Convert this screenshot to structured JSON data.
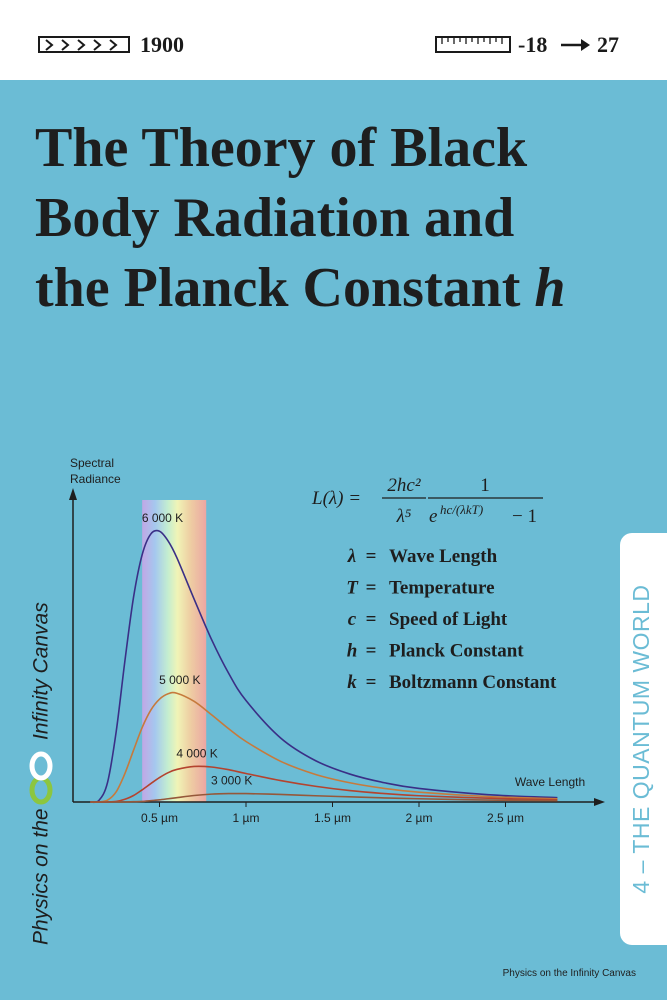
{
  "header": {
    "year": "1900",
    "range_from": "-18",
    "range_to": "27"
  },
  "title": {
    "lines": [
      "The Theory of Black",
      "Body Radiation and",
      "the Planck Constant"
    ],
    "symbol": "h"
  },
  "formula": {
    "lhs": "L(λ) =",
    "numerator_1": "2hc²",
    "denominator_1": "λ⁵",
    "numerator_2": "1",
    "exp_base": "e",
    "exponent": "hc/(λkT)",
    "minus_one": "− 1"
  },
  "equals_sign": "=",
  "definitions": [
    {
      "symbol": "λ",
      "label": "Wave Length"
    },
    {
      "symbol": "T",
      "label": "Temperature"
    },
    {
      "symbol": "c",
      "label": "Speed of Light"
    },
    {
      "symbol": "h",
      "label": "Planck Constant"
    },
    {
      "symbol": "k",
      "label": "Boltzmann Constant"
    }
  ],
  "side_tab": "4 – THE QUANTUM WORLD",
  "brand": {
    "prefix": "Physics on the",
    "name": "Infinity Canvas"
  },
  "footer": "Physics on the Infinity Canvas",
  "chart_data": {
    "type": "line",
    "y_label": [
      "Spectral",
      "Radiance"
    ],
    "x_label": "Wave Length",
    "xlim": [
      0,
      3
    ],
    "ylim": [
      0,
      115
    ],
    "xticks": [
      {
        "value": 0.5,
        "label": "0.5 µm"
      },
      {
        "value": 1,
        "label": "1 µm"
      },
      {
        "value": 1.5,
        "label": "1.5 µm"
      },
      {
        "value": 2,
        "label": "2 µm"
      },
      {
        "value": 2.5,
        "label": "2.5 µm"
      }
    ],
    "visible_band": [
      0.4,
      0.77
    ],
    "x": [
      0.1,
      0.15,
      0.2,
      0.25,
      0.3,
      0.35,
      0.4,
      0.45,
      0.5,
      0.55,
      0.6,
      0.7,
      0.8,
      0.9,
      1.0,
      1.2,
      1.4,
      1.6,
      1.8,
      2.0,
      2.4,
      2.8
    ],
    "series": [
      {
        "name": "6 000 K",
        "color": "#3a2f86",
        "values": [
          0,
          0.6,
          7.3,
          26.1,
          52,
          75.5,
          91.2,
          98.8,
          99.8,
          96.2,
          90.1,
          74.8,
          60,
          47.4,
          37.4,
          23.6,
          15.3,
          10.3,
          7.1,
          5,
          2.7,
          1.6
        ]
      },
      {
        "name": "5 000 K",
        "color": "#c67a3c",
        "values": [
          0,
          0,
          0.7,
          3.8,
          10.5,
          19.1,
          27.5,
          33.9,
          37.9,
          39.9,
          40.1,
          37.1,
          32.2,
          27,
          22.3,
          15,
          10.2,
          7.1,
          5,
          3.6,
          2,
          1.2
        ]
      },
      {
        "name": "4 000 K",
        "color": "#b4432e",
        "values": [
          0,
          0,
          0,
          0.2,
          1,
          2.4,
          4.5,
          6.8,
          9,
          10.8,
          12,
          13.1,
          12.9,
          11.9,
          10.5,
          7.9,
          5.8,
          4.2,
          3.1,
          2.3,
          1.4,
          0.8
        ]
      },
      {
        "name": "3 000 K",
        "color": "#95583a",
        "values": [
          0,
          0,
          0,
          0,
          0,
          0.1,
          0.2,
          0.5,
          0.8,
          1.2,
          1.6,
          2.4,
          2.9,
          3.1,
          3.1,
          2.8,
          2.3,
          1.9,
          1.5,
          1.2,
          0.7,
          0.5
        ]
      }
    ]
  }
}
